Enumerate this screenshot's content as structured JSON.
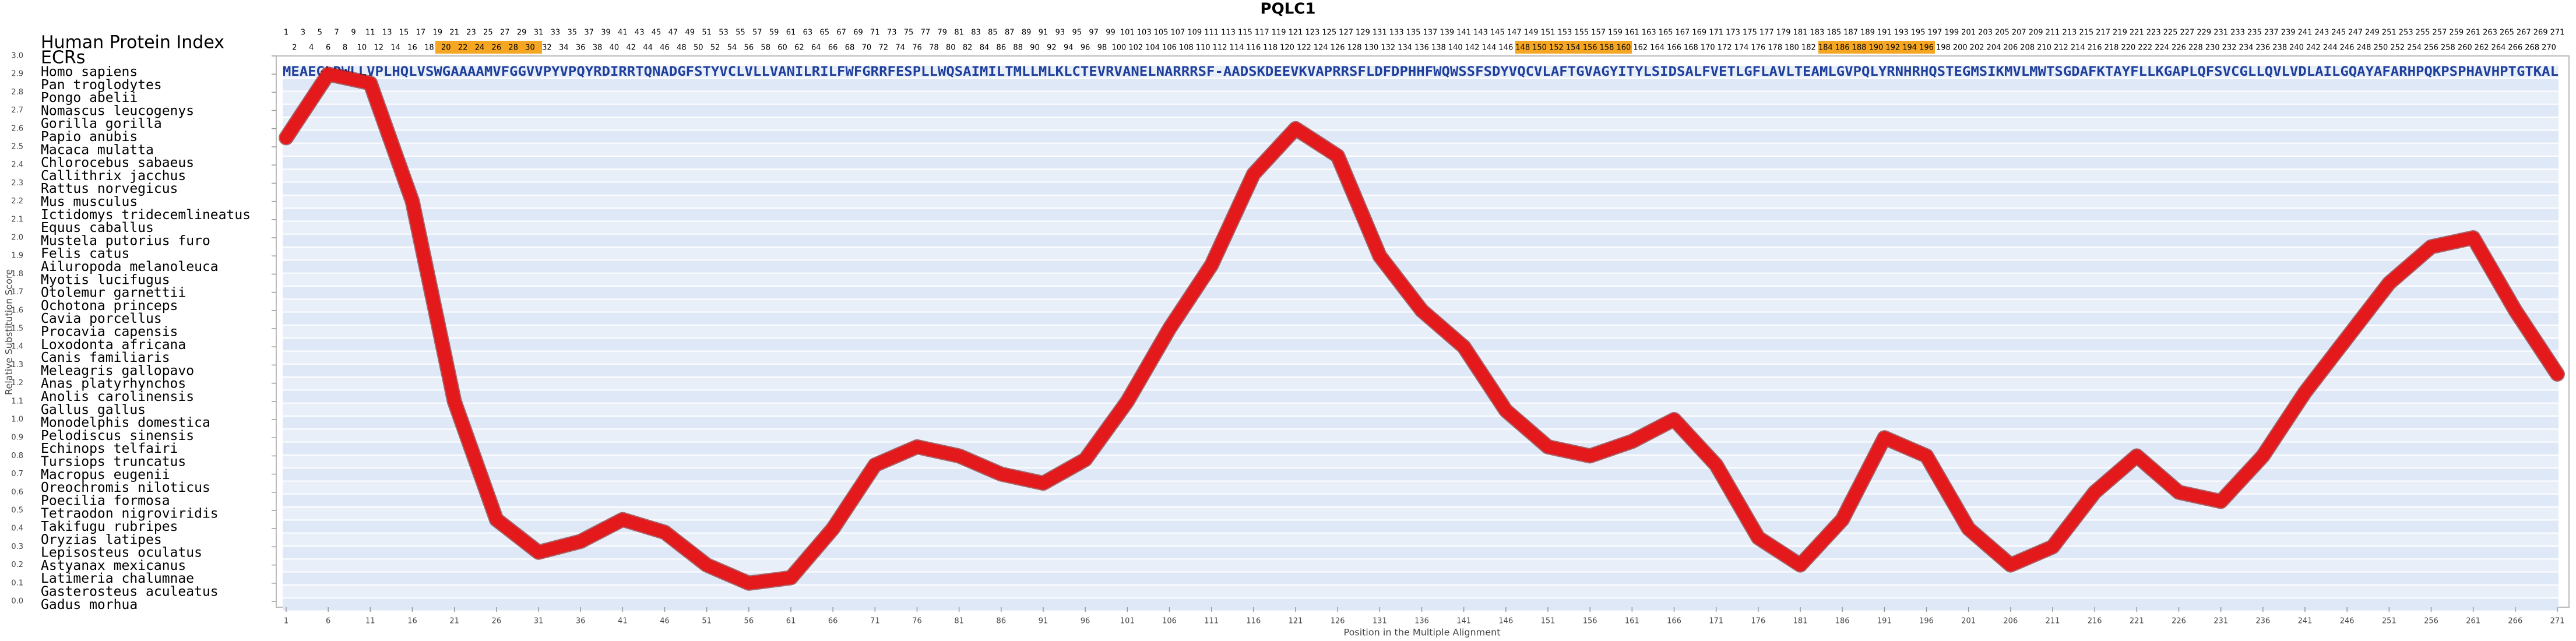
{
  "chart_data": {
    "type": "line",
    "title": "PQLC1",
    "x_label": "Position in the Multiple Alignment",
    "y_label": "Relative Substitution Score",
    "header": {
      "index_label": "Human Protein Index",
      "ecr_label": "ECRs",
      "index_odd": [
        1,
        3,
        5,
        7,
        9,
        11,
        13,
        15,
        17,
        19,
        21,
        23,
        25,
        27,
        29,
        31,
        33,
        35,
        37,
        39,
        41,
        43,
        45,
        47,
        49,
        51,
        53,
        55,
        57,
        59,
        61,
        63,
        65,
        67,
        69,
        71,
        73,
        75,
        77,
        79,
        81,
        83,
        85,
        87,
        89,
        91,
        93,
        95,
        97,
        99,
        101,
        103,
        105,
        107,
        109,
        111,
        113,
        115,
        117,
        119,
        121,
        123,
        125,
        127,
        129,
        131,
        133,
        135,
        137,
        139,
        141,
        143,
        145,
        147,
        149,
        151,
        153,
        155,
        157,
        159,
        161,
        163,
        165,
        167,
        169,
        171,
        173,
        175,
        177,
        179,
        181,
        183,
        185,
        187,
        189,
        191,
        193,
        195,
        197,
        199,
        201,
        203,
        205,
        207,
        209,
        211,
        213,
        215,
        217,
        219,
        221,
        223,
        225,
        227,
        229,
        231,
        233,
        235,
        237,
        239,
        241,
        243,
        245,
        247,
        249,
        251,
        253,
        255,
        257,
        259,
        261,
        263,
        265,
        267,
        269,
        271
      ],
      "index_even": [
        2,
        4,
        6,
        8,
        10,
        12,
        14,
        16,
        18,
        20,
        22,
        24,
        26,
        28,
        30,
        32,
        34,
        36,
        38,
        40,
        42,
        44,
        46,
        48,
        50,
        52,
        54,
        56,
        58,
        60,
        62,
        64,
        66,
        68,
        70,
        72,
        74,
        76,
        78,
        80,
        82,
        84,
        86,
        88,
        90,
        92,
        94,
        96,
        98,
        100,
        102,
        104,
        106,
        108,
        110,
        112,
        114,
        116,
        118,
        120,
        122,
        124,
        126,
        128,
        130,
        132,
        134,
        136,
        138,
        140,
        142,
        144,
        146,
        148,
        150,
        152,
        154,
        156,
        158,
        160,
        162,
        164,
        166,
        168,
        170,
        172,
        174,
        176,
        178,
        180,
        182,
        184,
        186,
        188,
        190,
        192,
        194,
        196,
        198,
        200,
        202,
        204,
        206,
        208,
        210,
        212,
        214,
        216,
        218,
        220,
        222,
        224,
        226,
        228,
        230,
        232,
        234,
        236,
        238,
        240,
        242,
        244,
        246,
        248,
        250,
        252,
        254,
        256,
        258,
        260,
        262,
        264,
        266,
        268,
        270
      ]
    },
    "species": [
      "Homo sapiens",
      "Pan troglodytes",
      "Pongo abelii",
      "Nomascus leucogenys",
      "Gorilla gorilla",
      "Papio anubis",
      "Macaca mulatta",
      "Chlorocebus sabaeus",
      "Callithrix jacchus",
      "Rattus norvegicus",
      "Mus musculus",
      "Ictidomys tridecemlineatus",
      "Equus caballus",
      "Mustela putorius furo",
      "Felis catus",
      "Ailuropoda melanoleuca",
      "Myotis lucifugus",
      "Otolemur garnettii",
      "Ochotona princeps",
      "Cavia porcellus",
      "Procavia capensis",
      "Loxodonta africana",
      "Canis familiaris",
      "Meleagris gallopavo",
      "Anas platyrhynchos",
      "Anolis carolinensis",
      "Gallus gallus",
      "Monodelphis domestica",
      "Pelodiscus sinensis",
      "Echinops telfairi",
      "Tursiops truncatus",
      "Macropus eugenii",
      "Oreochromis niloticus",
      "Poecilia formosa",
      "Tetraodon nigroviridis",
      "Takifugu rubripes",
      "Oryzias latipes",
      "Lepisosteus oculatus",
      "Astyanax mexicanus",
      "Latimeria chalumnae",
      "Gasterosteus aculeatus",
      "Gadus morhua"
    ],
    "sequences": [
      "MEAEGLDWLLVPLHQLVSWGAAAAMVFGGVVPYVPQYRDIRRTQNADGFSTYVCLVLLVANILRILFWFGRRFESPLLWQSAIMILTMLLMLKLCTEVRVANELNARRRSF-AADSKDEEVKVAPRRSFLDFDPHHFWQWSSFSDYVQCVLAFTGVAGYITYLSIDSALFVETLGFLAVLTEAMLGVPQLYRNHRHQSTEGMSIKMVLMWTSGDAFKTAYFLLKGAPLQFSVCGLLQVLVDLAILGQAYAFARHPQKPSPHAVHPTGTKAL"
    ],
    "x": [
      1,
      6,
      11,
      16,
      21,
      26,
      31,
      36,
      41,
      46,
      51,
      56,
      61,
      66,
      71,
      76,
      81,
      86,
      91,
      96,
      101,
      106,
      111,
      116,
      121,
      126,
      131,
      136,
      141,
      146,
      151,
      156,
      161,
      166,
      171,
      176,
      181,
      186,
      191,
      196,
      201,
      206,
      211,
      216,
      221,
      226,
      231,
      236,
      241,
      246,
      251,
      256,
      261,
      266,
      271
    ],
    "series": [
      {
        "color": "#e3191c",
        "values": [
          2.55,
          2.9,
          2.85,
          2.2,
          1.1,
          0.45,
          0.27,
          0.33,
          0.45,
          0.38,
          0.2,
          0.1,
          0.13,
          0.4,
          0.75,
          0.85,
          0.8,
          0.7,
          0.65,
          0.78,
          1.1,
          1.5,
          1.85,
          2.35,
          2.6,
          2.45,
          1.9,
          1.6,
          1.4,
          1.05,
          0.85,
          0.8,
          0.88,
          1.0,
          0.75,
          0.35,
          0.2,
          0.45,
          0.9,
          0.8,
          0.4,
          0.2,
          0.3,
          0.6,
          0.8,
          0.6,
          0.55,
          0.8,
          1.15,
          1.45,
          1.75,
          1.95,
          2.0,
          1.6,
          1.25
        ]
      }
    ],
    "xlim": [
      1,
      271
    ],
    "ylim": [
      0,
      3
    ],
    "xticks": [
      1,
      6,
      11,
      16,
      21,
      26,
      31,
      36,
      41,
      46,
      51,
      56,
      61,
      66,
      71,
      76,
      81,
      86,
      91,
      96,
      101,
      106,
      111,
      116,
      121,
      126,
      131,
      136,
      141,
      146,
      151,
      156,
      161,
      166,
      171,
      176,
      181,
      186,
      191,
      196,
      201,
      206,
      211,
      216,
      221,
      226,
      231,
      236,
      241,
      246,
      251,
      256,
      261,
      266,
      271
    ],
    "yticks": [
      {
        "value": 0,
        "label": "0.0"
      },
      {
        "value": 0.1,
        "label": "0.1"
      },
      {
        "value": 0.2,
        "label": "0.2"
      },
      {
        "value": 0.3,
        "label": "0.3"
      },
      {
        "value": 0.4,
        "label": "0.4"
      },
      {
        "value": 0.5,
        "label": "0.5"
      },
      {
        "value": 0.6,
        "label": "0.6"
      },
      {
        "value": 0.7,
        "label": "0.7"
      },
      {
        "value": 0.8,
        "label": "0.8"
      },
      {
        "value": 0.9,
        "label": "0.9"
      },
      {
        "value": 1,
        "label": "1.0"
      },
      {
        "value": 1.1,
        "label": "1.1"
      },
      {
        "value": 1.2,
        "label": "1.2"
      },
      {
        "value": 1.3,
        "label": "1.3"
      },
      {
        "value": 1.4,
        "label": "1.4"
      },
      {
        "value": 1.5,
        "label": "1.5"
      },
      {
        "value": 1.6,
        "label": "1.6"
      },
      {
        "value": 1.7,
        "label": "1.7"
      },
      {
        "value": 1.8,
        "label": "1.8"
      },
      {
        "value": 1.9,
        "label": "1.9"
      },
      {
        "value": 2,
        "label": "2.0"
      },
      {
        "value": 2.1,
        "label": "2.1"
      },
      {
        "value": 2.2,
        "label": "2.2"
      },
      {
        "value": 2.3,
        "label": "2.3"
      },
      {
        "value": 2.4,
        "label": "2.4"
      },
      {
        "value": 2.5,
        "label": "2.5"
      },
      {
        "value": 2.6,
        "label": "2.6"
      },
      {
        "value": 2.7,
        "label": "2.7"
      },
      {
        "value": 2.8,
        "label": "2.8"
      },
      {
        "value": 2.9,
        "label": "2.9"
      },
      {
        "value": 3,
        "label": "3.0"
      }
    ]
  }
}
